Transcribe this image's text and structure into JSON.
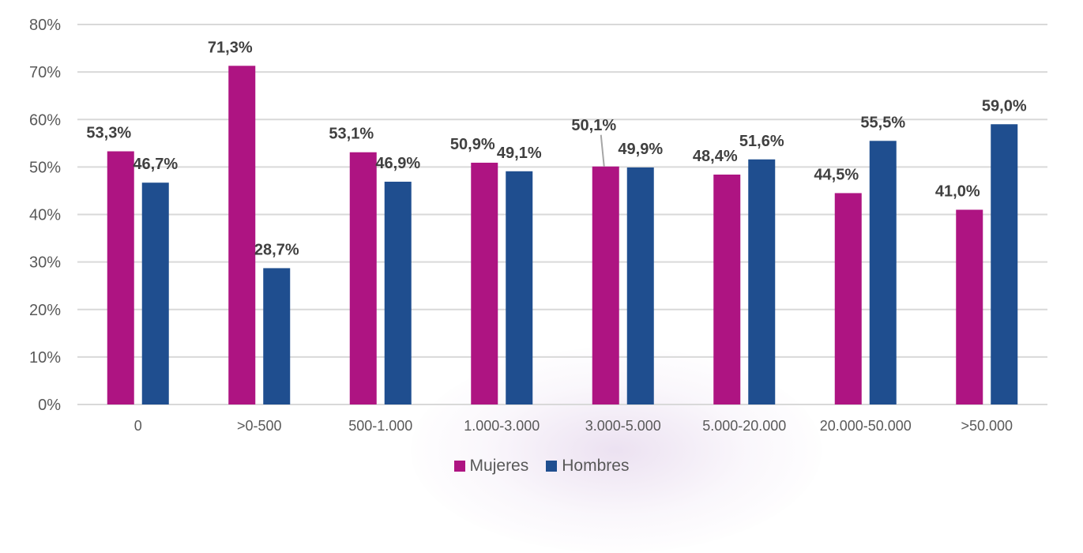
{
  "chart_data": {
    "type": "bar",
    "categories": [
      "0",
      ">0-500",
      "500-1.000",
      "1.000-3.000",
      "3.000-5.000",
      "5.000-20.000",
      "20.000-50.000",
      ">50.000"
    ],
    "series": [
      {
        "name": "Mujeres",
        "color": "#AE1482",
        "values": [
          53.3,
          71.3,
          53.1,
          50.9,
          50.1,
          48.4,
          44.5,
          41.0
        ],
        "labels": [
          "53,3%",
          "71,3%",
          "53,1%",
          "50,9%",
          "50,1%",
          "48,4%",
          "44,5%",
          "41,0%"
        ]
      },
      {
        "name": "Hombres",
        "color": "#1F4E8F",
        "values": [
          46.7,
          28.7,
          46.9,
          49.1,
          49.9,
          51.6,
          55.5,
          59.0
        ],
        "labels": [
          "46,7%",
          "28,7%",
          "46,9%",
          "49,1%",
          "49,9%",
          "51,6%",
          "55,5%",
          "59,0%"
        ]
      }
    ],
    "ylim": [
      0,
      80
    ],
    "yticks": [
      "0%",
      "10%",
      "20%",
      "30%",
      "40%",
      "50%",
      "60%",
      "70%",
      "80%"
    ],
    "grid": true,
    "legend_position": "bottom",
    "title": "",
    "xlabel": "",
    "ylabel": ""
  }
}
